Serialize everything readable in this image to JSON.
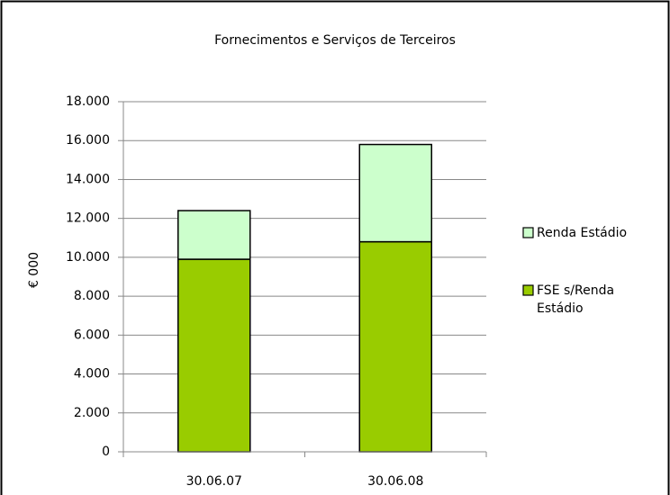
{
  "chart_data": {
    "type": "stacked_bar",
    "title": "Fornecimentos e Serviços de Terceiros",
    "y_label": "€ 000",
    "categories": [
      "30.06.07",
      "30.06.08"
    ],
    "series": [
      {
        "name": "FSE s/Renda Estádio",
        "color": "#99cc00",
        "values": [
          9900,
          10800
        ]
      },
      {
        "name": "Renda Estádio",
        "color": "#ccffcc",
        "values": [
          2500,
          5000
        ]
      }
    ],
    "ylim": [
      0,
      18000
    ],
    "yticks": [
      0,
      {
        "value": 2000,
        "label": "2.000"
      },
      {
        "value": 4000,
        "label": "4.000"
      },
      {
        "value": 6000,
        "label": "6.000"
      },
      {
        "value": 8000,
        "label": "8.000"
      },
      {
        "value": 10000,
        "label": "10.000"
      },
      {
        "value": 12000,
        "label": "12.000"
      },
      {
        "value": 14000,
        "label": "14.000"
      },
      {
        "value": 16000,
        "label": "16.000"
      },
      {
        "value": 18000,
        "label": "18.000"
      }
    ],
    "grid": true,
    "legend": "right"
  }
}
